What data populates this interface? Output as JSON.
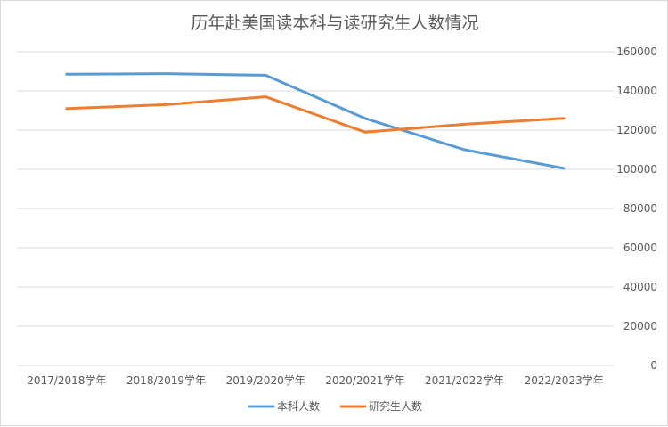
{
  "chart_data": {
    "type": "line",
    "title": "历年赴美国读本科与读研究生人数情况",
    "categories": [
      "2017/2018学年",
      "2018/2019学年",
      "2019/2020学年",
      "2020/2021学年",
      "2021/2022学年",
      "2022/2023学年"
    ],
    "series": [
      {
        "name": "本科人数",
        "color": "#5b9bd5",
        "values": [
          148500,
          148800,
          148000,
          126000,
          110000,
          100500
        ]
      },
      {
        "name": "研究生人数",
        "color": "#ed7d31",
        "values": [
          131000,
          133000,
          137000,
          119000,
          123000,
          126000
        ]
      }
    ],
    "ylim": [
      0,
      160000
    ],
    "yticks": [
      0,
      20000,
      40000,
      60000,
      80000,
      100000,
      120000,
      140000,
      160000
    ],
    "ytick_labels": [
      "0",
      "20000",
      "40000",
      "60000",
      "80000",
      "100000",
      "120000",
      "140000",
      "160000"
    ],
    "y_axis_side": "right",
    "grid": true,
    "legend_position": "bottom"
  }
}
